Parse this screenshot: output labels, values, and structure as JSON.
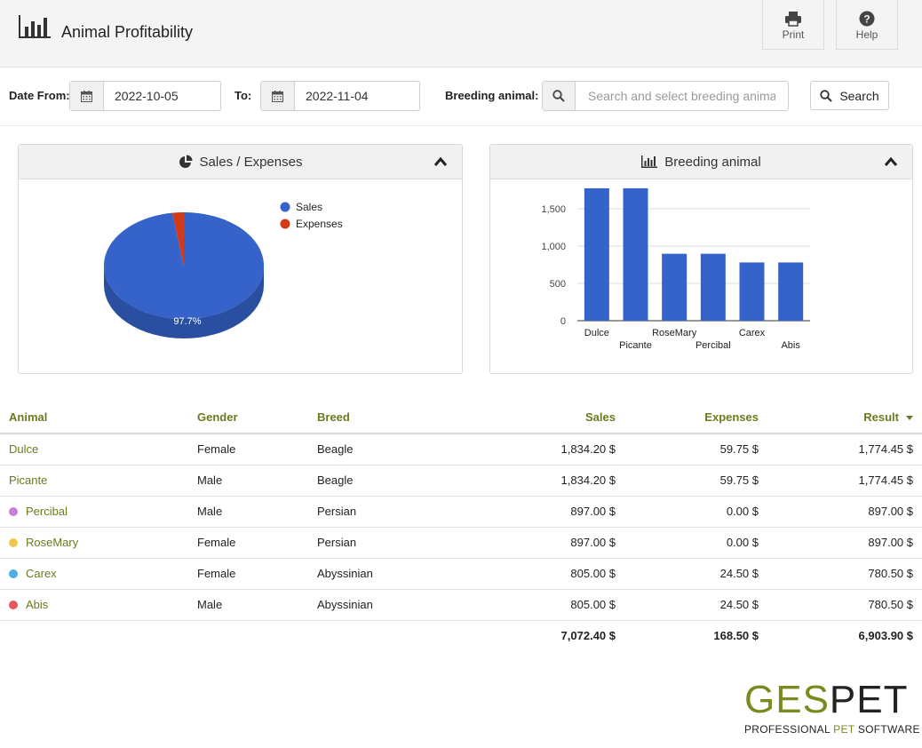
{
  "header": {
    "title": "Animal Profitability",
    "print_label": "Print",
    "help_label": "Help"
  },
  "filters": {
    "date_from_label": "Date From:",
    "date_from_value": "2022-10-05",
    "to_label": "To:",
    "to_value": "2022-11-04",
    "breeding_label": "Breeding animal:",
    "breeding_placeholder": "Search and select breeding animal",
    "search_label": "Search"
  },
  "panels": {
    "sales_title": "Sales / Expenses",
    "breeding_title": "Breeding animal"
  },
  "colors": {
    "accent": "#6b7a1e",
    "sales": "#3563c9",
    "expenses": "#d13b17"
  },
  "chart_data": [
    {
      "type": "pie",
      "title": "Sales / Expenses",
      "categories": [
        "Sales",
        "Expenses"
      ],
      "values": [
        7072.4,
        168.5
      ],
      "data_labels": [
        "97.7%"
      ],
      "legend": "top-right",
      "style": "3d"
    },
    {
      "type": "bar",
      "title": "Breeding animal",
      "categories": [
        "Dulce",
        "Picante",
        "RoseMary",
        "Percibal",
        "Carex",
        "Abis"
      ],
      "values": [
        1774.45,
        1774.45,
        897.0,
        897.0,
        780.5,
        780.5
      ],
      "ylim": [
        0,
        1750
      ],
      "yticks": [
        "0",
        "500",
        "1,000",
        "1,500"
      ],
      "grid": true,
      "color": "#3563c9"
    }
  ],
  "table": {
    "headers": {
      "animal": "Animal",
      "gender": "Gender",
      "breed": "Breed",
      "sales": "Sales",
      "expenses": "Expenses",
      "result": "Result"
    },
    "rows": [
      {
        "animal": "Dulce",
        "dot": "",
        "gender": "Female",
        "breed": "Beagle",
        "sales": "1,834.20 $",
        "expenses": "59.75 $",
        "result": "1,774.45 $"
      },
      {
        "animal": "Picante",
        "dot": "",
        "gender": "Male",
        "breed": "Beagle",
        "sales": "1,834.20 $",
        "expenses": "59.75 $",
        "result": "1,774.45 $"
      },
      {
        "animal": "Percibal",
        "dot": "#c97fd8",
        "gender": "Male",
        "breed": "Persian",
        "sales": "897.00 $",
        "expenses": "0.00 $",
        "result": "897.00 $"
      },
      {
        "animal": "RoseMary",
        "dot": "#f0c94a",
        "gender": "Female",
        "breed": "Persian",
        "sales": "897.00 $",
        "expenses": "0.00 $",
        "result": "897.00 $"
      },
      {
        "animal": "Carex",
        "dot": "#4bb0e6",
        "gender": "Female",
        "breed": "Abyssinian",
        "sales": "805.00 $",
        "expenses": "24.50 $",
        "result": "780.50 $"
      },
      {
        "animal": "Abis",
        "dot": "#e8585a",
        "gender": "Male",
        "breed": "Abyssinian",
        "sales": "805.00 $",
        "expenses": "24.50 $",
        "result": "780.50 $"
      }
    ],
    "totals": {
      "sales": "7,072.40 $",
      "expenses": "168.50 $",
      "result": "6,903.90 $"
    }
  },
  "logo": {
    "ges": "GES",
    "pet": "PET",
    "sub_a": "PROFESSIONAL ",
    "sub_b": "PET",
    "sub_c": " SOFTWARE"
  }
}
